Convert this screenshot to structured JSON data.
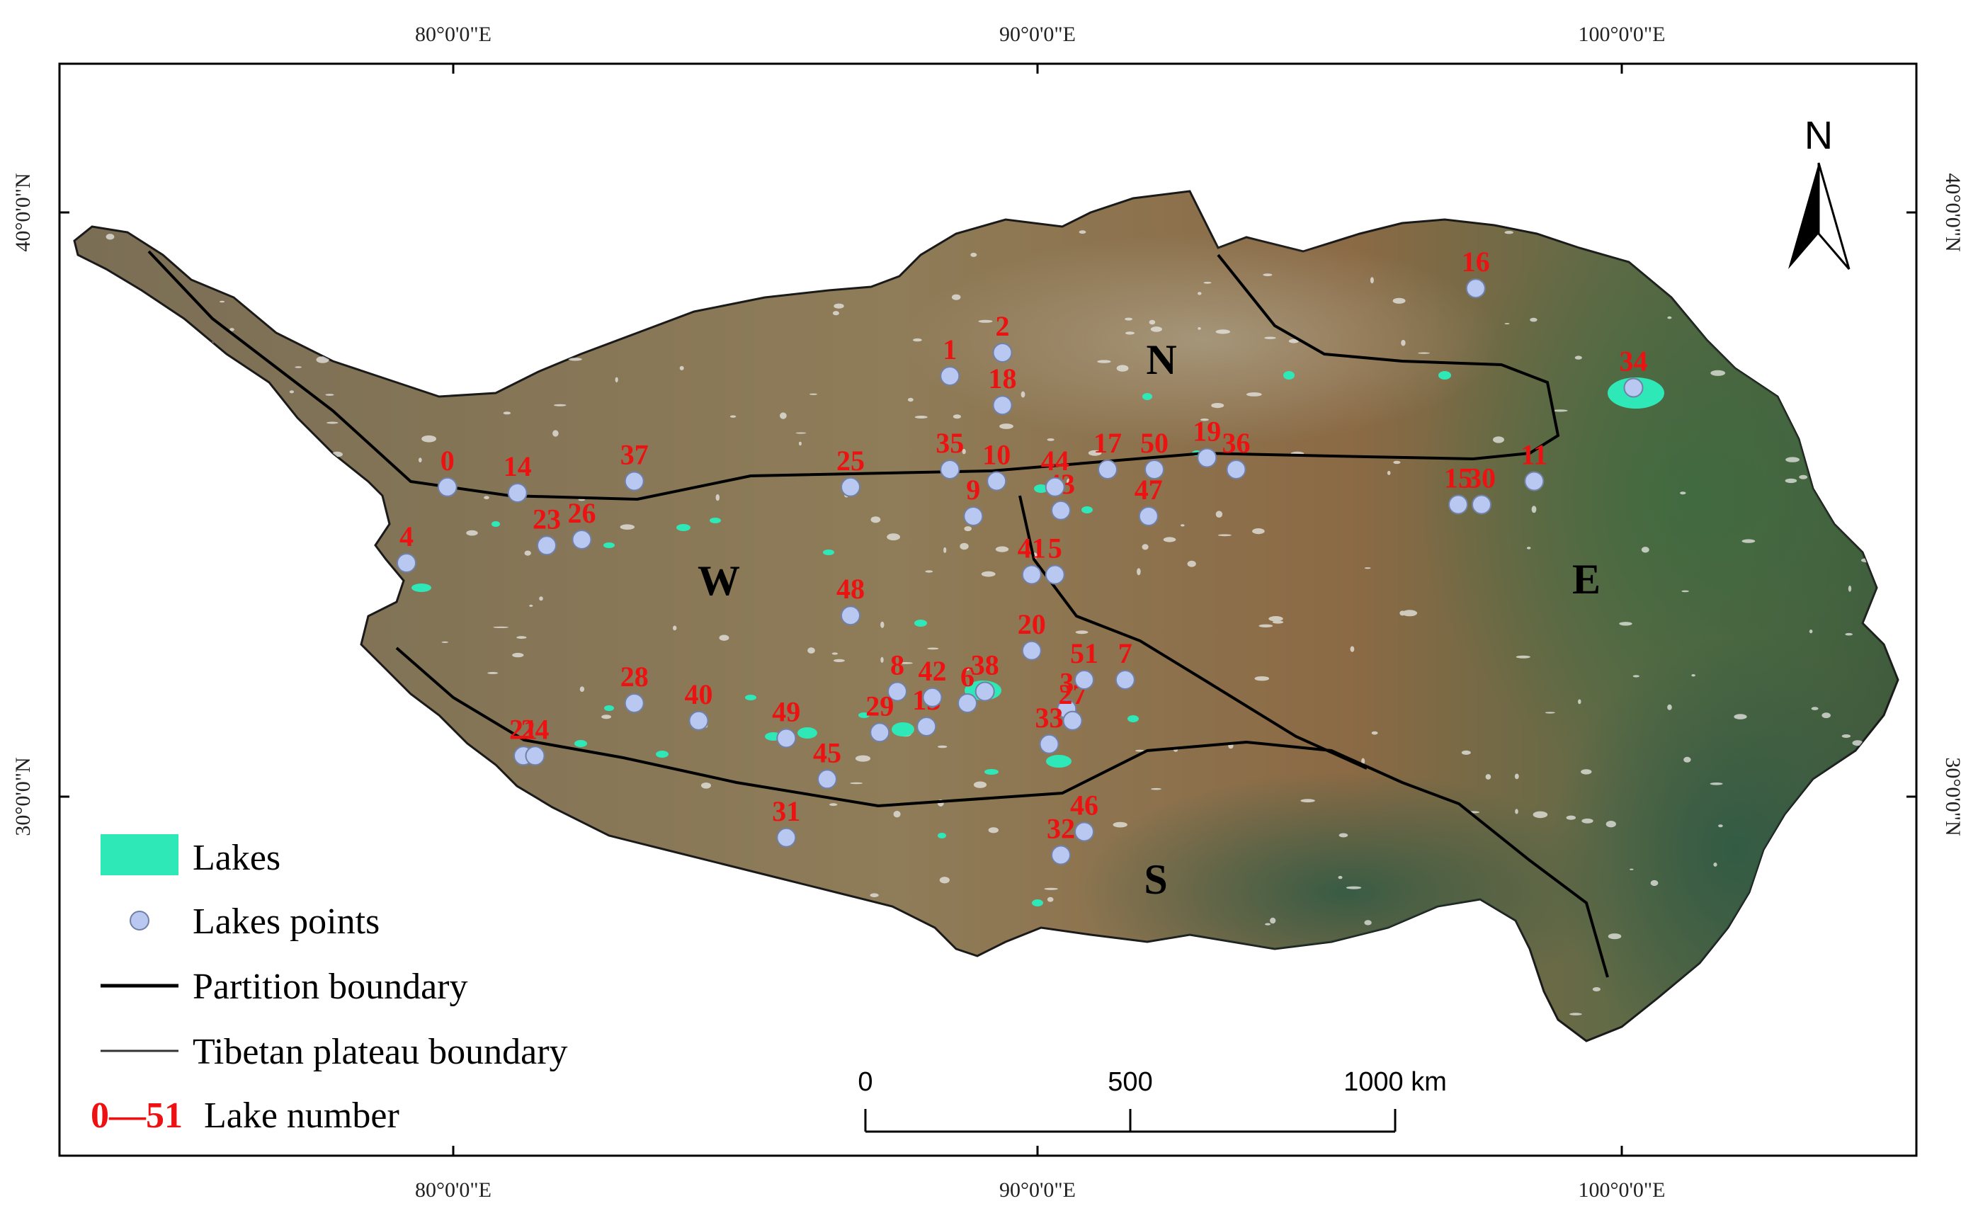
{
  "map": {
    "graticule": {
      "top_lon_labels": [
        "80°0'0\"E",
        "90°0'0\"E",
        "100°0'0\"E"
      ],
      "bottom_lon_labels": [
        "80°0'0\"E",
        "90°0'0\"E",
        "100°0'0\"E"
      ],
      "left_lat_labels": [
        "40°0'0\"N",
        "30°0'0\"N"
      ],
      "right_lat_labels": [
        "40°0'0\"N",
        "30°0'0\"N"
      ]
    },
    "regions": [
      "N",
      "W",
      "E",
      "S"
    ],
    "north_arrow": "N",
    "colors": {
      "lakes": "#2ee8b8",
      "lake_points": "#b8c8f0",
      "lake_number": "#ee1111",
      "boundary": "#000000",
      "plateau_fill": "#8a7a55"
    },
    "lakes": [
      {
        "id": "0",
        "lon": 79.9,
        "lat": 35.3
      },
      {
        "id": "1",
        "lon": 88.5,
        "lat": 37.2
      },
      {
        "id": "2",
        "lon": 89.4,
        "lat": 37.6
      },
      {
        "id": "3",
        "lon": 90.5,
        "lat": 31.5
      },
      {
        "id": "4",
        "lon": 79.2,
        "lat": 34.0
      },
      {
        "id": "5",
        "lon": 90.3,
        "lat": 33.8
      },
      {
        "id": "6",
        "lon": 88.8,
        "lat": 31.6
      },
      {
        "id": "7",
        "lon": 91.5,
        "lat": 32.0
      },
      {
        "id": "8",
        "lon": 87.6,
        "lat": 31.8
      },
      {
        "id": "9",
        "lon": 88.9,
        "lat": 34.8
      },
      {
        "id": "10",
        "lon": 89.3,
        "lat": 35.4
      },
      {
        "id": "11",
        "lon": 98.5,
        "lat": 35.4
      },
      {
        "id": "13",
        "lon": 88.1,
        "lat": 31.2
      },
      {
        "id": "14",
        "lon": 81.1,
        "lat": 35.2
      },
      {
        "id": "15",
        "lon": 97.2,
        "lat": 35.0
      },
      {
        "id": "16",
        "lon": 97.5,
        "lat": 38.7
      },
      {
        "id": "17",
        "lon": 91.2,
        "lat": 35.6
      },
      {
        "id": "18",
        "lon": 89.4,
        "lat": 36.7
      },
      {
        "id": "19",
        "lon": 92.9,
        "lat": 35.8
      },
      {
        "id": "20",
        "lon": 89.9,
        "lat": 32.5
      },
      {
        "id": "21",
        "lon": 81.2,
        "lat": 30.7
      },
      {
        "id": "23",
        "lon": 81.6,
        "lat": 34.3
      },
      {
        "id": "24",
        "lon": 81.4,
        "lat": 30.7
      },
      {
        "id": "25",
        "lon": 86.8,
        "lat": 35.3
      },
      {
        "id": "26",
        "lon": 82.2,
        "lat": 34.4
      },
      {
        "id": "27",
        "lon": 90.6,
        "lat": 31.3
      },
      {
        "id": "28",
        "lon": 83.1,
        "lat": 31.6
      },
      {
        "id": "29",
        "lon": 87.3,
        "lat": 31.1
      },
      {
        "id": "30",
        "lon": 97.6,
        "lat": 35.0
      },
      {
        "id": "31",
        "lon": 85.7,
        "lat": 29.3
      },
      {
        "id": "32",
        "lon": 90.4,
        "lat": 29.0
      },
      {
        "id": "33",
        "lon": 90.2,
        "lat": 30.9
      },
      {
        "id": "34",
        "lon": 100.2,
        "lat": 37.0
      },
      {
        "id": "35",
        "lon": 88.5,
        "lat": 35.6
      },
      {
        "id": "36",
        "lon": 93.4,
        "lat": 35.6
      },
      {
        "id": "37",
        "lon": 83.1,
        "lat": 35.4
      },
      {
        "id": "38",
        "lon": 89.1,
        "lat": 31.8
      },
      {
        "id": "40",
        "lon": 84.2,
        "lat": 31.3
      },
      {
        "id": "41",
        "lon": 89.9,
        "lat": 33.8
      },
      {
        "id": "42",
        "lon": 88.2,
        "lat": 31.7
      },
      {
        "id": "43",
        "lon": 90.4,
        "lat": 34.9
      },
      {
        "id": "44",
        "lon": 90.3,
        "lat": 35.3
      },
      {
        "id": "45",
        "lon": 86.4,
        "lat": 30.3
      },
      {
        "id": "46",
        "lon": 90.8,
        "lat": 29.4
      },
      {
        "id": "47",
        "lon": 91.9,
        "lat": 34.8
      },
      {
        "id": "48",
        "lon": 86.8,
        "lat": 33.1
      },
      {
        "id": "49",
        "lon": 85.7,
        "lat": 31.0
      },
      {
        "id": "50",
        "lon": 92.0,
        "lat": 35.6
      },
      {
        "id": "51",
        "lon": 90.8,
        "lat": 32.0
      }
    ]
  },
  "legend": {
    "lakes": "Lakes",
    "lake_points": "Lakes points",
    "partition_boundary": "Partition boundary",
    "plateau_boundary": "Tibetan plateau boundary",
    "lake_number_range": "0—51",
    "lake_number": "Lake number"
  },
  "scale_bar": {
    "labels": [
      "0",
      "500",
      "1000 km"
    ],
    "values_km": [
      0,
      500,
      1000
    ]
  }
}
